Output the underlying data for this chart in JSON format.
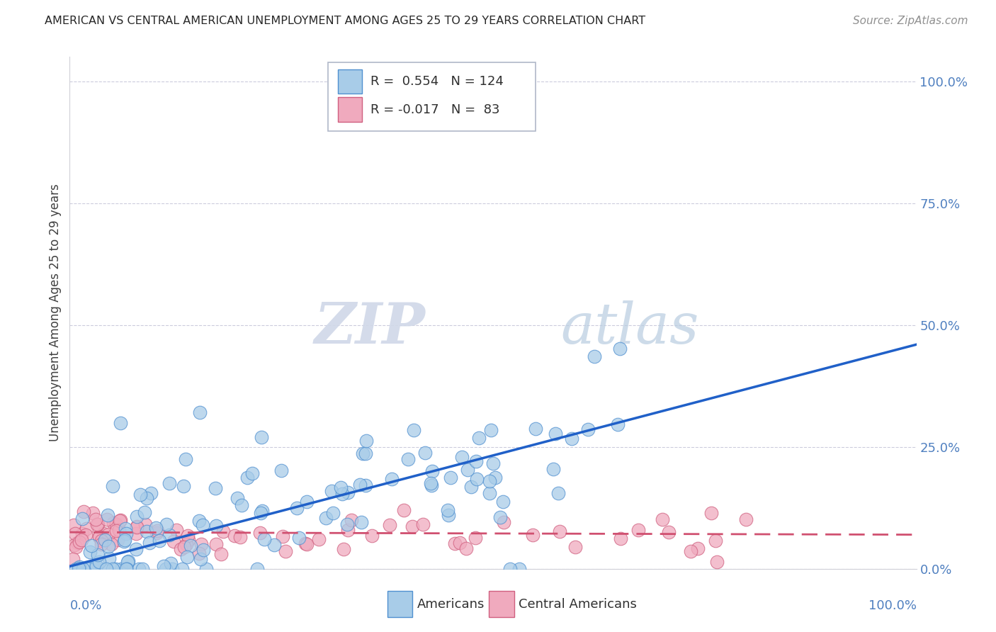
{
  "title": "AMERICAN VS CENTRAL AMERICAN UNEMPLOYMENT AMONG AGES 25 TO 29 YEARS CORRELATION CHART",
  "source": "Source: ZipAtlas.com",
  "ylabel": "Unemployment Among Ages 25 to 29 years",
  "yticks": [
    "0.0%",
    "25.0%",
    "50.0%",
    "75.0%",
    "100.0%"
  ],
  "ytick_vals": [
    0.0,
    0.25,
    0.5,
    0.75,
    1.0
  ],
  "legend_american_r": "0.554",
  "legend_american_n": "124",
  "legend_central_r": "-0.017",
  "legend_central_n": "83",
  "american_color": "#a8cce8",
  "central_color": "#f0aabe",
  "american_edge_color": "#5090d0",
  "central_edge_color": "#d06080",
  "american_line_color": "#2060c8",
  "central_line_color": "#d05070",
  "background_color": "#ffffff",
  "grid_color": "#ccccdd",
  "watermark_color": "#d0d8e8",
  "tick_label_color": "#5080c0",
  "am_slope": 0.455,
  "am_intercept": 0.005,
  "ca_slope": -0.005,
  "ca_intercept": 0.075,
  "american_N": 124,
  "central_N": 83,
  "xlim": [
    0.0,
    1.0
  ],
  "ylim": [
    0.0,
    1.05
  ]
}
